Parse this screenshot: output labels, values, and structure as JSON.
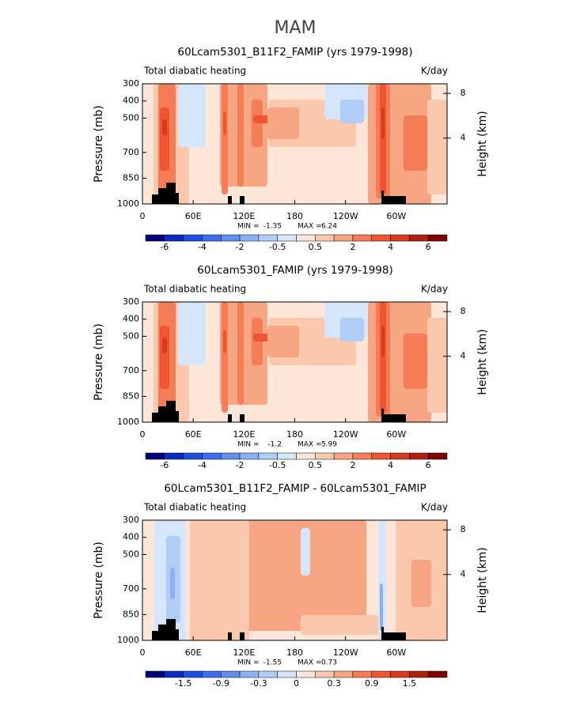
{
  "title": "MAM",
  "chart_data": [
    {
      "type": "contour",
      "title": "60Lcam5301_B11F2_FAMIP (yrs 1979-1998)",
      "subtitle_left": "Total diabatic heating",
      "subtitle_right": "K/day",
      "ylabel": "Pressure (mb)",
      "y2label": "Height (km)",
      "ylim": [
        1000,
        300
      ],
      "yticks": [
        300,
        400,
        500,
        700,
        850,
        1000
      ],
      "y2ticks": [
        4,
        8
      ],
      "xlim": [
        0,
        360
      ],
      "xticks": [
        0,
        {
          "value": 60,
          "label": "60E"
        },
        {
          "value": 120,
          "label": "120E"
        },
        180,
        {
          "value": 240,
          "label": "120W"
        },
        {
          "value": 300,
          "label": "60W"
        }
      ],
      "min_label": "MIN =",
      "min": -1.35,
      "max_label": "MAX =",
      "max": 6.24,
      "colorbar": {
        "colors": [
          "#00007f",
          "#0a2bbf",
          "#1a4fe0",
          "#3d6ef0",
          "#6190f0",
          "#8ab0f5",
          "#b0cdf7",
          "#d5e5fb",
          "#fde5d8",
          "#fbc8ad",
          "#f7a583",
          "#f47c56",
          "#ee5530",
          "#d93a1c",
          "#b0200f",
          "#7f0000"
        ],
        "levels": [
          -6,
          null,
          -4,
          null,
          -2,
          null,
          -0.5,
          null,
          0.5,
          null,
          2,
          null,
          4,
          null,
          6
        ]
      }
    },
    {
      "type": "contour",
      "title": "60Lcam5301_FAMIP (yrs 1979-1998)",
      "subtitle_left": "Total diabatic heating",
      "subtitle_right": "K/day",
      "ylabel": "Pressure (mb)",
      "y2label": "Height (km)",
      "ylim": [
        1000,
        300
      ],
      "yticks": [
        300,
        400,
        500,
        700,
        850,
        1000
      ],
      "y2ticks": [
        4,
        8
      ],
      "xlim": [
        0,
        360
      ],
      "xticks": [
        0,
        {
          "value": 60,
          "label": "60E"
        },
        {
          "value": 120,
          "label": "120E"
        },
        180,
        {
          "value": 240,
          "label": "120W"
        },
        {
          "value": 300,
          "label": "60W"
        }
      ],
      "min_label": "MIN =",
      "min": -1.2,
      "max_label": "MAX =",
      "max": 5.99,
      "colorbar": {
        "colors": [
          "#00007f",
          "#0a2bbf",
          "#1a4fe0",
          "#3d6ef0",
          "#6190f0",
          "#8ab0f5",
          "#b0cdf7",
          "#d5e5fb",
          "#fde5d8",
          "#fbc8ad",
          "#f7a583",
          "#f47c56",
          "#ee5530",
          "#d93a1c",
          "#b0200f",
          "#7f0000"
        ],
        "levels": [
          -6,
          null,
          -4,
          null,
          -2,
          null,
          -0.5,
          null,
          0.5,
          null,
          2,
          null,
          4,
          null,
          6
        ]
      }
    },
    {
      "type": "contour",
      "title": "60Lcam5301_B11F2_FAMIP - 60Lcam5301_FAMIP",
      "subtitle_left": "Total diabatic heating",
      "subtitle_right": "K/day",
      "ylabel": "Pressure (mb)",
      "y2label": "Height (km)",
      "ylim": [
        1000,
        300
      ],
      "yticks": [
        300,
        400,
        500,
        700,
        850,
        1000
      ],
      "y2ticks": [
        4,
        8
      ],
      "xlim": [
        0,
        360
      ],
      "xticks": [
        0,
        {
          "value": 60,
          "label": "60E"
        },
        {
          "value": 120,
          "label": "120E"
        },
        180,
        {
          "value": 240,
          "label": "120W"
        },
        {
          "value": 300,
          "label": "60W"
        }
      ],
      "min_label": "MIN =",
      "min": -1.55,
      "max_label": "MAX =",
      "max": 0.73,
      "colorbar": {
        "colors": [
          "#00007f",
          "#0a2bbf",
          "#1a4fe0",
          "#3d6ef0",
          "#6190f0",
          "#8ab0f5",
          "#b0cdf7",
          "#d5e5fb",
          "#fde5d8",
          "#fbc8ad",
          "#f7a583",
          "#f47c56",
          "#ee5530",
          "#d93a1c",
          "#b0200f",
          "#7f0000"
        ],
        "levels": [
          null,
          -1.5,
          null,
          -0.9,
          null,
          -0.3,
          null,
          0,
          null,
          0.3,
          null,
          0.9,
          null,
          1.5,
          null
        ]
      }
    }
  ]
}
